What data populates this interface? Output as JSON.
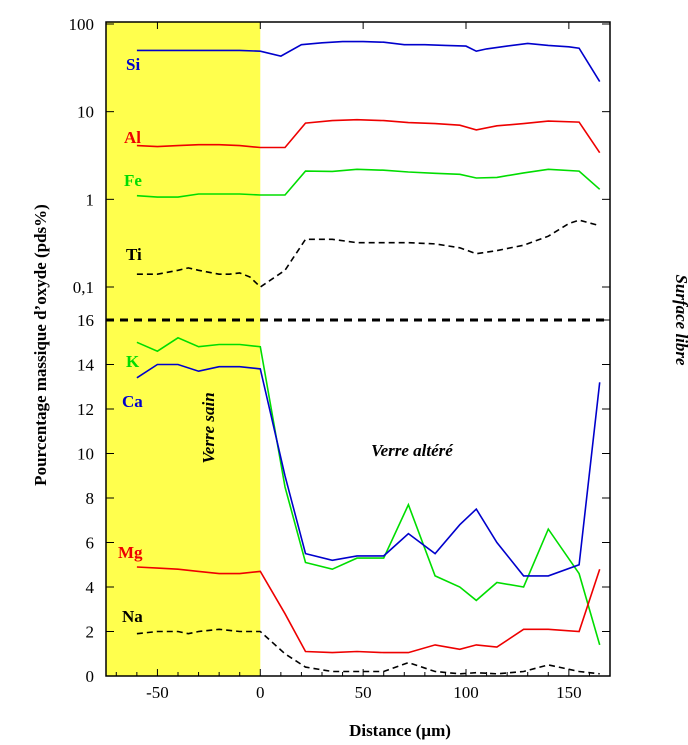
{
  "chart_data": [
    {
      "type": "line",
      "panel": "top",
      "yscale": "log",
      "ylim": [
        0.07,
        100
      ],
      "xlim": [
        -75,
        170
      ],
      "ytick_labels": [
        "0,1",
        "1",
        "10",
        "100"
      ],
      "ytick_values": [
        0.1,
        1,
        10,
        100
      ],
      "series": [
        {
          "name": "Si",
          "color": "#0000cc",
          "dashed": false,
          "x": [
            -60,
            -50,
            -40,
            -30,
            -20,
            -10,
            0,
            10,
            20,
            30,
            40,
            50,
            60,
            70,
            80,
            90,
            100,
            105,
            110,
            120,
            130,
            140,
            150,
            155,
            165
          ],
          "y": [
            50,
            50,
            50,
            50,
            50,
            50,
            49,
            43,
            58,
            61,
            63,
            63,
            62,
            58,
            58,
            57,
            56,
            49,
            52,
            56,
            60,
            57,
            55,
            53,
            22
          ]
        },
        {
          "name": "Al",
          "color": "#ee0000",
          "dashed": false,
          "x": [
            -60,
            -50,
            -40,
            -30,
            -20,
            -10,
            0,
            12,
            22,
            35,
            47,
            60,
            72,
            85,
            97,
            105,
            115,
            128,
            140,
            155,
            165
          ],
          "y": [
            4.1,
            4.0,
            4.1,
            4.2,
            4.2,
            4.1,
            3.9,
            3.9,
            7.4,
            7.9,
            8.1,
            7.9,
            7.5,
            7.3,
            7.0,
            6.2,
            6.9,
            7.3,
            7.8,
            7.6,
            3.4
          ]
        },
        {
          "name": "Fe",
          "color": "#00dd00",
          "dashed": false,
          "x": [
            -60,
            -50,
            -40,
            -30,
            -20,
            -10,
            0,
            12,
            22,
            35,
            47,
            60,
            72,
            85,
            97,
            105,
            115,
            128,
            140,
            155,
            165
          ],
          "y": [
            1.1,
            1.06,
            1.06,
            1.15,
            1.15,
            1.15,
            1.12,
            1.12,
            2.1,
            2.08,
            2.2,
            2.15,
            2.05,
            1.98,
            1.93,
            1.75,
            1.78,
            2.0,
            2.2,
            2.1,
            1.3
          ]
        },
        {
          "name": "Ti",
          "color": "#000000",
          "dashed": true,
          "x": [
            -60,
            -50,
            -40,
            -35,
            -30,
            -20,
            -15,
            -10,
            -5,
            0,
            12,
            22,
            35,
            47,
            60,
            72,
            85,
            97,
            105,
            115,
            128,
            140,
            150,
            155,
            165
          ],
          "y": [
            0.14,
            0.14,
            0.155,
            0.165,
            0.155,
            0.14,
            0.14,
            0.145,
            0.13,
            0.1,
            0.155,
            0.35,
            0.35,
            0.32,
            0.32,
            0.32,
            0.31,
            0.28,
            0.24,
            0.26,
            0.3,
            0.38,
            0.53,
            0.58,
            0.5
          ]
        }
      ]
    },
    {
      "type": "line",
      "panel": "bottom",
      "ylim": [
        0,
        16
      ],
      "xlim": [
        -75,
        170
      ],
      "xticks": [
        -50,
        0,
        50,
        100,
        150
      ],
      "xtick_labels": [
        "-50",
        "0",
        "50",
        "100",
        "150"
      ],
      "yticks": [
        0,
        2,
        4,
        6,
        8,
        10,
        12,
        14,
        16
      ],
      "series": [
        {
          "name": "K",
          "color": "#00dd00",
          "dashed": false,
          "x": [
            -60,
            -50,
            -40,
            -30,
            -20,
            -10,
            0,
            12,
            22,
            35,
            47,
            60,
            72,
            85,
            97,
            105,
            115,
            128,
            140,
            155,
            165
          ],
          "y": [
            15.0,
            14.6,
            15.2,
            14.8,
            14.9,
            14.9,
            14.8,
            8.5,
            5.1,
            4.8,
            5.3,
            5.3,
            7.7,
            4.5,
            4.0,
            3.4,
            4.2,
            4.0,
            6.6,
            4.6,
            1.4
          ]
        },
        {
          "name": "Ca",
          "color": "#0000cc",
          "dashed": false,
          "x": [
            -60,
            -50,
            -40,
            -30,
            -20,
            -10,
            0,
            12,
            22,
            35,
            47,
            60,
            72,
            85,
            97,
            105,
            115,
            128,
            140,
            155,
            165
          ],
          "y": [
            13.4,
            14.0,
            14.0,
            13.7,
            13.9,
            13.9,
            13.8,
            9.0,
            5.5,
            5.2,
            5.4,
            5.4,
            6.4,
            5.5,
            6.8,
            7.5,
            6.0,
            4.5,
            4.5,
            5.0,
            13.2
          ]
        },
        {
          "name": "Mg",
          "color": "#ee0000",
          "dashed": false,
          "x": [
            -60,
            -50,
            -40,
            -30,
            -20,
            -10,
            0,
            12,
            22,
            35,
            47,
            60,
            72,
            85,
            97,
            105,
            115,
            128,
            140,
            155,
            165
          ],
          "y": [
            4.9,
            4.85,
            4.8,
            4.7,
            4.6,
            4.6,
            4.7,
            2.8,
            1.1,
            1.05,
            1.1,
            1.05,
            1.05,
            1.4,
            1.2,
            1.4,
            1.3,
            2.1,
            2.1,
            2.0,
            4.8
          ]
        },
        {
          "name": "Na",
          "color": "#000000",
          "dashed": true,
          "x": [
            -60,
            -50,
            -40,
            -35,
            -30,
            -20,
            -10,
            0,
            12,
            22,
            35,
            47,
            60,
            72,
            85,
            97,
            105,
            115,
            128,
            140,
            150,
            155,
            165
          ],
          "y": [
            1.9,
            2.0,
            2.0,
            1.9,
            2.0,
            2.1,
            2.0,
            2.0,
            1.0,
            0.4,
            0.2,
            0.2,
            0.2,
            0.6,
            0.2,
            0.1,
            0.15,
            0.1,
            0.2,
            0.5,
            0.3,
            0.2,
            0.1
          ]
        }
      ]
    }
  ],
  "labels": {
    "ylabel": "Pourcentage massique d’oxyde (pds%)",
    "xlabel": "Distance (µm)",
    "surface": "Surface libre",
    "sain": "Verre sain",
    "altere": "Verre altéré"
  },
  "colors": {
    "highlight": "#ffff4d",
    "frame": "#000000"
  }
}
